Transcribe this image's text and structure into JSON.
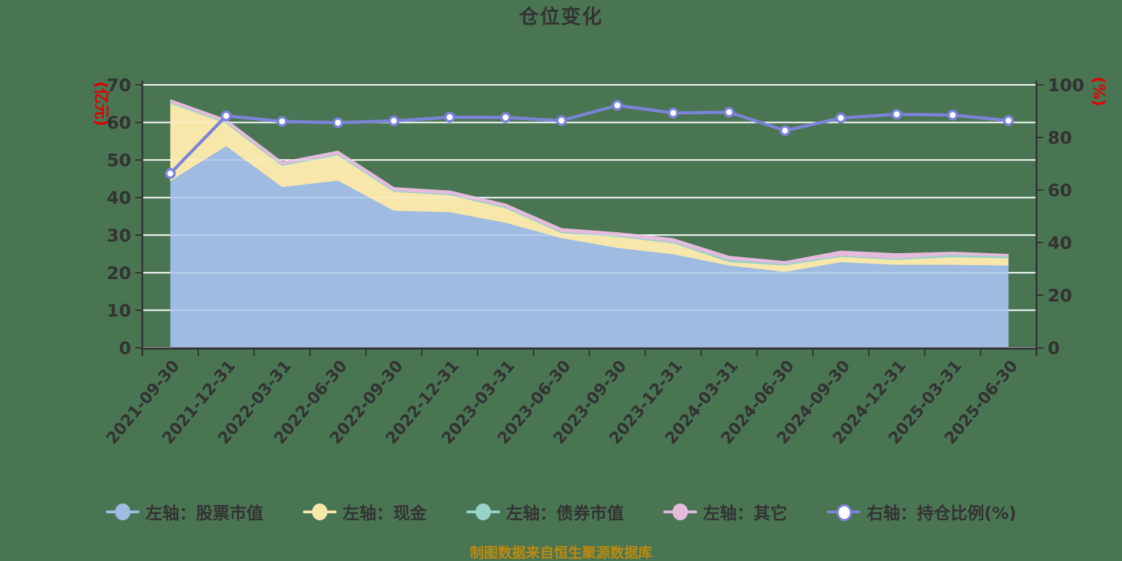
{
  "title": "仓位变化",
  "source_note": "制图数据来自恒生聚源数据库",
  "colors": {
    "background": "#4a7553",
    "title": "#333333",
    "axis": "#333333",
    "grid": "#ffffff",
    "axis_unit": "#e00000",
    "caption": "#bd8a0e"
  },
  "chart_data": {
    "type": "area",
    "title": "仓位变化",
    "x": [
      "2021-09-30",
      "2021-12-31",
      "2022-03-31",
      "2022-06-30",
      "2022-09-30",
      "2022-12-31",
      "2023-03-31",
      "2023-06-30",
      "2023-09-30",
      "2023-12-31",
      "2024-03-31",
      "2024-06-30",
      "2024-09-30",
      "2024-12-31",
      "2025-03-31",
      "2025-06-30"
    ],
    "series": [
      {
        "name": "左轴：股票市值",
        "axis": "left",
        "kind": "area",
        "stack": true,
        "color": "#9fbbe2",
        "values": [
          44.4,
          53.7,
          42.8,
          44.5,
          36.5,
          36.1,
          33.3,
          29.2,
          26.6,
          24.9,
          21.9,
          20.2,
          22.8,
          22.1,
          22.1,
          21.9
        ]
      },
      {
        "name": "左轴：现金",
        "axis": "left",
        "kind": "area",
        "stack": true,
        "color": "#f7e7aa",
        "values": [
          20.7,
          6.1,
          5.7,
          6.8,
          5.1,
          4.6,
          3.9,
          1.4,
          3.0,
          2.9,
          0.9,
          1.7,
          1.4,
          1.3,
          2.0,
          1.9
        ]
      },
      {
        "name": "左轴：债券市值",
        "axis": "left",
        "kind": "area",
        "stack": true,
        "color": "#97d2c9",
        "values": [
          0.2,
          0.2,
          0.2,
          0.2,
          0.2,
          0.2,
          0.2,
          0.2,
          0.2,
          0.3,
          0.6,
          0.4,
          0.3,
          0.3,
          0.6,
          0.5
        ]
      },
      {
        "name": "左轴：其它",
        "axis": "left",
        "kind": "area",
        "stack": true,
        "color": "#e5badc",
        "values": [
          0.6,
          0.6,
          0.6,
          0.7,
          0.7,
          0.7,
          0.7,
          0.8,
          0.7,
          0.8,
          0.8,
          0.5,
          1.1,
          1.2,
          0.6,
          0.4
        ]
      },
      {
        "name": "右轴：持仓比例(%)",
        "axis": "right",
        "kind": "line",
        "stack": false,
        "marker": "hollow",
        "color": "#7b83d9",
        "values": [
          66.3,
          88.2,
          86.1,
          85.6,
          86.3,
          87.7,
          87.6,
          86.4,
          92.2,
          89.3,
          89.6,
          82.6,
          87.4,
          88.8,
          88.5,
          86.4
        ]
      }
    ],
    "left_axis": {
      "name": "(亿元)",
      "min": 0,
      "max": 70,
      "tick_step": 10,
      "ticks": [
        0,
        10,
        20,
        30,
        40,
        50,
        60,
        70
      ]
    },
    "right_axis": {
      "name": "(%)",
      "min": 0,
      "max": 100,
      "tick_step": 20,
      "ticks": [
        0,
        20,
        40,
        60,
        80,
        100
      ]
    },
    "grid": true,
    "legend_position": "bottom"
  }
}
